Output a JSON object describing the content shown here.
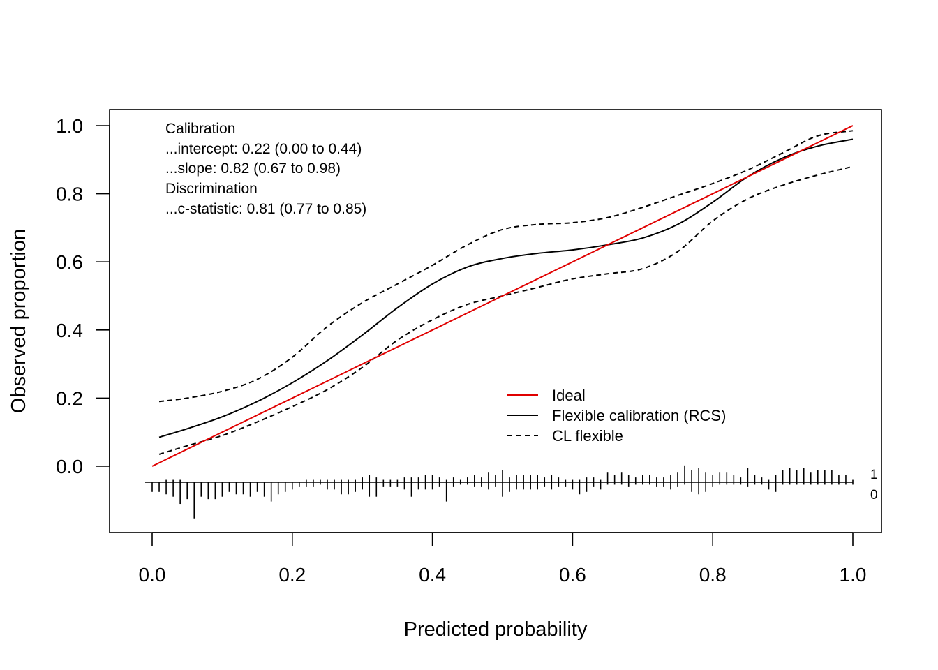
{
  "chart_data": {
    "type": "line",
    "title": "",
    "xlabel": "Predicted probability",
    "ylabel": "Observed proportion",
    "xlim": [
      0.0,
      1.0
    ],
    "ylim": [
      0.0,
      1.0
    ],
    "x_ticks": [
      "0.0",
      "0.2",
      "0.4",
      "0.6",
      "0.8",
      "1.0"
    ],
    "y_ticks": [
      "0.0",
      "0.2",
      "0.4",
      "0.6",
      "0.8",
      "1.0"
    ],
    "grid": false,
    "legend": {
      "position": "bottom-right",
      "entries": [
        "Ideal",
        "Flexible calibration (RCS)",
        "CL flexible"
      ]
    },
    "annotations": [
      "Calibration",
      "...intercept: 0.22 (0.00 to 0.44)",
      "...slope: 0.82 (0.67 to 0.98)",
      "Discrimination",
      "...c-statistic: 0.81 (0.77 to 0.85)"
    ],
    "series": [
      {
        "name": "Ideal",
        "color": "#e00000",
        "style": "solid",
        "x": [
          0.0,
          1.0
        ],
        "y": [
          0.0,
          1.0
        ]
      },
      {
        "name": "Flexible calibration (RCS)",
        "color": "#000000",
        "style": "solid",
        "x": [
          0.01,
          0.05,
          0.1,
          0.15,
          0.2,
          0.25,
          0.3,
          0.35,
          0.4,
          0.45,
          0.5,
          0.55,
          0.6,
          0.65,
          0.7,
          0.75,
          0.8,
          0.85,
          0.9,
          0.95,
          1.0
        ],
        "y": [
          0.085,
          0.11,
          0.145,
          0.19,
          0.245,
          0.31,
          0.385,
          0.465,
          0.535,
          0.585,
          0.61,
          0.625,
          0.635,
          0.65,
          0.67,
          0.71,
          0.775,
          0.85,
          0.905,
          0.94,
          0.96
        ]
      },
      {
        "name": "CL flexible",
        "color": "#000000",
        "style": "dashed",
        "x": [
          0.01,
          0.05,
          0.1,
          0.15,
          0.2,
          0.25,
          0.3,
          0.35,
          0.4,
          0.45,
          0.5,
          0.55,
          0.6,
          0.65,
          0.7,
          0.75,
          0.8,
          0.85,
          0.9,
          0.95,
          1.0
        ],
        "y": [
          0.19,
          0.2,
          0.22,
          0.255,
          0.32,
          0.41,
          0.48,
          0.535,
          0.59,
          0.65,
          0.695,
          0.71,
          0.715,
          0.73,
          0.76,
          0.795,
          0.83,
          0.87,
          0.92,
          0.97,
          0.985
        ]
      },
      {
        "name": "CL flexible",
        "color": "#000000",
        "style": "dashed",
        "x": [
          0.01,
          0.05,
          0.1,
          0.15,
          0.2,
          0.25,
          0.3,
          0.35,
          0.4,
          0.45,
          0.5,
          0.55,
          0.6,
          0.65,
          0.7,
          0.75,
          0.8,
          0.85,
          0.9,
          0.95,
          1.0
        ],
        "y": [
          0.035,
          0.06,
          0.09,
          0.13,
          0.175,
          0.225,
          0.29,
          0.37,
          0.43,
          0.475,
          0.5,
          0.525,
          0.55,
          0.565,
          0.58,
          0.63,
          0.72,
          0.785,
          0.825,
          0.855,
          0.88
        ]
      }
    ],
    "rug": {
      "labels": [
        "1",
        "0"
      ],
      "x": [
        0.0,
        0.01,
        0.02,
        0.03,
        0.04,
        0.05,
        0.06,
        0.07,
        0.08,
        0.09,
        0.1,
        0.11,
        0.12,
        0.13,
        0.14,
        0.15,
        0.16,
        0.17,
        0.18,
        0.19,
        0.2,
        0.21,
        0.22,
        0.23,
        0.24,
        0.25,
        0.26,
        0.27,
        0.28,
        0.29,
        0.3,
        0.31,
        0.32,
        0.33,
        0.34,
        0.35,
        0.36,
        0.37,
        0.38,
        0.39,
        0.4,
        0.41,
        0.42,
        0.43,
        0.44,
        0.45,
        0.46,
        0.47,
        0.48,
        0.49,
        0.5,
        0.51,
        0.52,
        0.53,
        0.54,
        0.55,
        0.56,
        0.57,
        0.58,
        0.59,
        0.6,
        0.61,
        0.62,
        0.63,
        0.64,
        0.65,
        0.66,
        0.67,
        0.68,
        0.69,
        0.7,
        0.71,
        0.72,
        0.73,
        0.74,
        0.75,
        0.76,
        0.77,
        0.78,
        0.79,
        0.8,
        0.81,
        0.82,
        0.83,
        0.84,
        0.85,
        0.86,
        0.87,
        0.88,
        0.89,
        0.9,
        0.91,
        0.92,
        0.93,
        0.94,
        0.95,
        0.96,
        0.97,
        0.98,
        0.99,
        1.0
      ],
      "positive": [
        0,
        0,
        1,
        1,
        1,
        0,
        0,
        0,
        0,
        0,
        0,
        0,
        0,
        0,
        0,
        0,
        0,
        0,
        0,
        0,
        0,
        0,
        1,
        1,
        1,
        1,
        1,
        1,
        1,
        1,
        2,
        3,
        2,
        1,
        1,
        1,
        2,
        2,
        2,
        3,
        3,
        2,
        1,
        2,
        1,
        2,
        3,
        2,
        4,
        3,
        5,
        2,
        3,
        3,
        3,
        3,
        2,
        3,
        2,
        1,
        1,
        1,
        2,
        2,
        1,
        4,
        3,
        4,
        3,
        2,
        3,
        3,
        2,
        2,
        3,
        4,
        7,
        5,
        6,
        4,
        3,
        4,
        4,
        3,
        2,
        6,
        3,
        2,
        1,
        3,
        5,
        6,
        5,
        6,
        4,
        5,
        5,
        5,
        3,
        3,
        1
      ],
      "negative": [
        4,
        4,
        5,
        6,
        9,
        7,
        15,
        6,
        7,
        7,
        6,
        4,
        5,
        5,
        6,
        4,
        6,
        8,
        5,
        4,
        3,
        2,
        2,
        2,
        1,
        3,
        3,
        5,
        5,
        4,
        3,
        6,
        6,
        2,
        2,
        2,
        3,
        6,
        3,
        3,
        3,
        2,
        8,
        2,
        1,
        1,
        2,
        2,
        3,
        2,
        6,
        4,
        3,
        3,
        3,
        3,
        2,
        3,
        2,
        2,
        3,
        5,
        4,
        2,
        3,
        1,
        1,
        1,
        2,
        1,
        1,
        1,
        2,
        2,
        3,
        2,
        1,
        4,
        5,
        4,
        2,
        1,
        1,
        1,
        1,
        2,
        1,
        1,
        3,
        4,
        1,
        1,
        1,
        1,
        1,
        1,
        1,
        1,
        1,
        1,
        1
      ]
    }
  }
}
